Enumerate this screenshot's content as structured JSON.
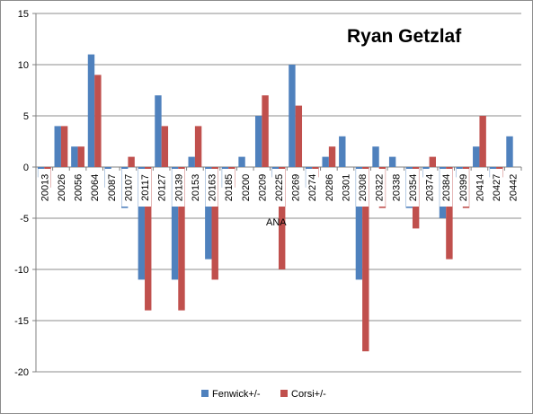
{
  "chart_data": {
    "type": "bar",
    "title": "Ryan Getzlaf",
    "categories": [
      "20013",
      "20026",
      "20056",
      "20064",
      "20087",
      "20107",
      "20117",
      "20127",
      "20139",
      "20153",
      "20163",
      "20185",
      "20200",
      "20209",
      "20225",
      "20269",
      "20274",
      "20286",
      "20301",
      "20308",
      "20322",
      "20338",
      "20354",
      "20374",
      "20384",
      "20399",
      "20414",
      "20427",
      "20442"
    ],
    "series": [
      {
        "name": "Fenwick+/-",
        "color": "#4f81bd",
        "values": [
          -1,
          4,
          2,
          11,
          -2,
          -4,
          -11,
          7,
          -11,
          1,
          -9,
          -2,
          1,
          5,
          -1,
          10,
          -2,
          1,
          3,
          -11,
          2,
          1,
          -4,
          -1,
          -5,
          -1,
          2,
          -1,
          3
        ]
      },
      {
        "name": "Corsi+/-",
        "color": "#c0504d",
        "values": [
          -2,
          4,
          2,
          9,
          0,
          1,
          -14,
          4,
          -14,
          4,
          -11,
          -2,
          0,
          7,
          -10,
          6,
          -1,
          2,
          0,
          -18,
          -4,
          0,
          -6,
          1,
          -9,
          -4,
          5,
          -1,
          0
        ]
      }
    ],
    "ylim": [
      -20,
      15
    ],
    "yticks": [
      -20,
      -15,
      -10,
      -5,
      0,
      5,
      10,
      15
    ],
    "grid": true,
    "legend": "bottom",
    "annotations": [
      {
        "text": "ANA"
      }
    ],
    "xlabel": "",
    "ylabel": ""
  }
}
